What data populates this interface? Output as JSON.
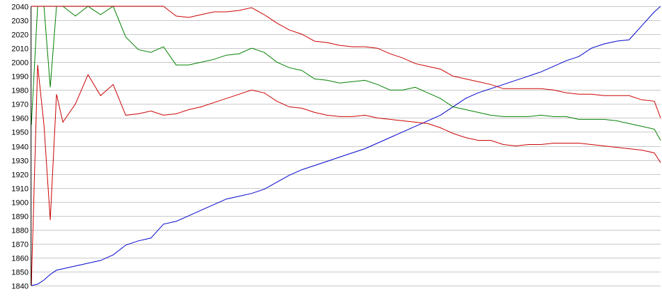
{
  "chart_data": {
    "type": "line",
    "title": "",
    "xlabel": "",
    "ylabel": "",
    "ylim": [
      1840,
      2040
    ],
    "yticks": [
      1840,
      1850,
      1860,
      1870,
      1880,
      1890,
      1900,
      1910,
      1920,
      1930,
      1940,
      1950,
      1960,
      1970,
      1980,
      1990,
      2000,
      2010,
      2020,
      2030,
      2040
    ],
    "xlim": [
      0,
      100
    ],
    "grid": "horizontal",
    "legend": "none",
    "x": [
      0,
      1,
      2,
      3,
      4,
      5,
      7,
      9,
      11,
      13,
      15,
      17,
      19,
      21,
      23,
      25,
      27,
      29,
      31,
      33,
      35,
      37,
      39,
      41,
      43,
      45,
      47,
      49,
      51,
      53,
      55,
      57,
      59,
      61,
      63,
      65,
      67,
      69,
      71,
      73,
      75,
      77,
      79,
      81,
      83,
      85,
      87,
      89,
      91,
      93,
      95,
      97,
      99,
      100
    ],
    "series": [
      {
        "color": "#0000cc",
        "values": [
          1840,
          1841,
          1844,
          1848,
          1851,
          1852,
          1854,
          1856,
          1858,
          1862,
          1869,
          1872,
          1874,
          1884,
          1886,
          1890,
          1894,
          1898,
          1902,
          1904,
          1906,
          1909,
          1914,
          1919,
          1923,
          1926,
          1929,
          1932,
          1935,
          1938,
          1942,
          1946,
          1950,
          1954,
          1958,
          1962,
          1968,
          1974,
          1978,
          1981,
          1984,
          1987,
          1990,
          1993,
          1997,
          2001,
          2004,
          2010,
          2013,
          2015,
          2016,
          2026,
          2036,
          2040
        ]
      },
      {
        "color": "#008000",
        "values": [
          1955,
          2040,
          2040,
          1982,
          2040,
          2040,
          2033,
          2040,
          2034,
          2040,
          2018,
          2009,
          2007,
          2011,
          1998,
          1998,
          2000,
          2002,
          2005,
          2006,
          2010,
          2007,
          2000,
          1996,
          1994,
          1988,
          1987,
          1985,
          1986,
          1987,
          1984,
          1980,
          1980,
          1982,
          1978,
          1974,
          1968,
          1966,
          1964,
          1962,
          1961,
          1961,
          1961,
          1962,
          1961,
          1961,
          1959,
          1959,
          1959,
          1958,
          1956,
          1954,
          1952,
          1944
        ]
      },
      {
        "color": "#cc0000",
        "values": [
          2040,
          2040,
          2040,
          2040,
          2040,
          2040,
          2040,
          2040,
          2040,
          2040,
          2040,
          2040,
          2040,
          2040,
          2033,
          2032,
          2034,
          2036,
          2036,
          2037,
          2039,
          2034,
          2028,
          2023,
          2020,
          2015,
          2014,
          2012,
          2011,
          2011,
          2010,
          2006,
          2003,
          1999,
          1997,
          1995,
          1990,
          1988,
          1986,
          1984,
          1981,
          1981,
          1981,
          1981,
          1980,
          1978,
          1977,
          1977,
          1976,
          1976,
          1976,
          1973,
          1972,
          1960
        ]
      },
      {
        "color": "#cc0000",
        "values": [
          1840,
          1998,
          1955,
          1887,
          1977,
          1957,
          1970,
          1991,
          1976,
          1984,
          1962,
          1963,
          1965,
          1962,
          1963,
          1966,
          1968,
          1971,
          1974,
          1977,
          1980,
          1978,
          1972,
          1968,
          1967,
          1964,
          1962,
          1961,
          1961,
          1962,
          1960,
          1959,
          1958,
          1957,
          1956,
          1953,
          1949,
          1946,
          1944,
          1944,
          1941,
          1940,
          1941,
          1941,
          1942,
          1942,
          1942,
          1941,
          1940,
          1939,
          1938,
          1937,
          1935,
          1928
        ]
      }
    ]
  }
}
